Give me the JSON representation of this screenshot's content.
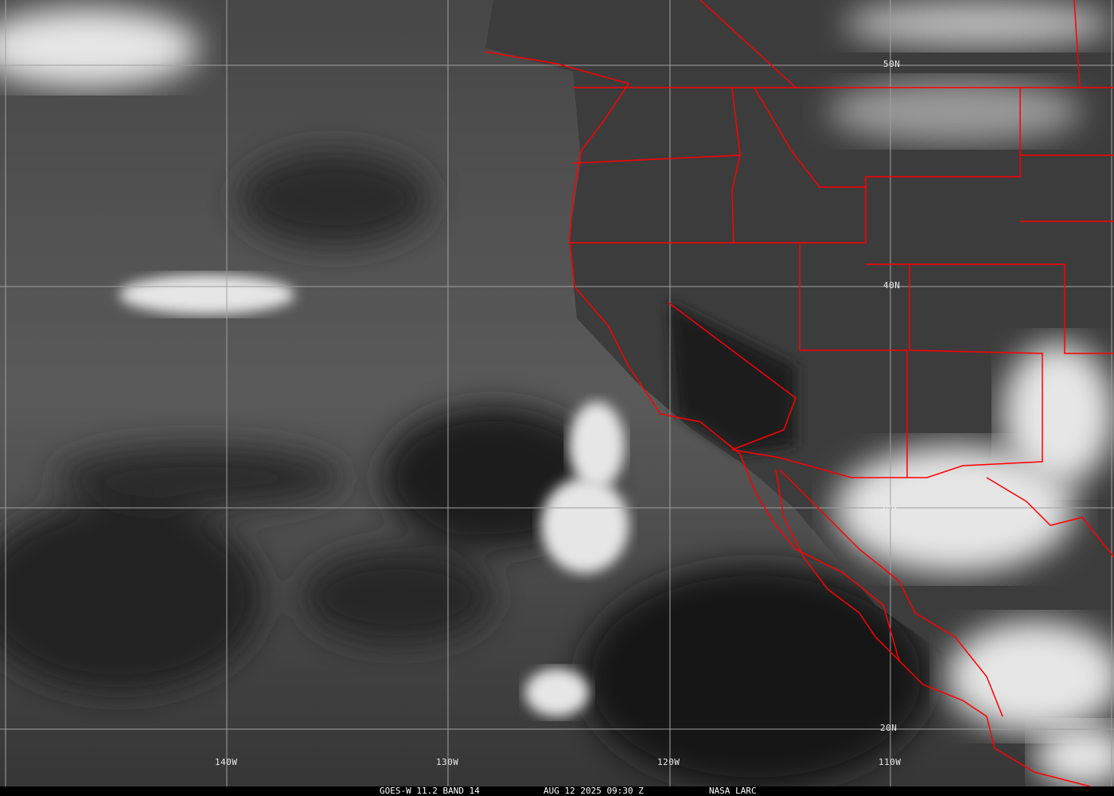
{
  "caption": {
    "satellite": "GOES-W 11.2 BAND 14",
    "datetime": "AUG 12 2025 09:30 Z",
    "source": "NASA LARC"
  },
  "grid": {
    "longitudes": [
      "140W",
      "130W",
      "120W",
      "110W"
    ],
    "latitudes": [
      "50N",
      "40N",
      "30N",
      "20N"
    ]
  },
  "colors": {
    "borders": "#ff0000",
    "grid": "#a0a0a0"
  }
}
